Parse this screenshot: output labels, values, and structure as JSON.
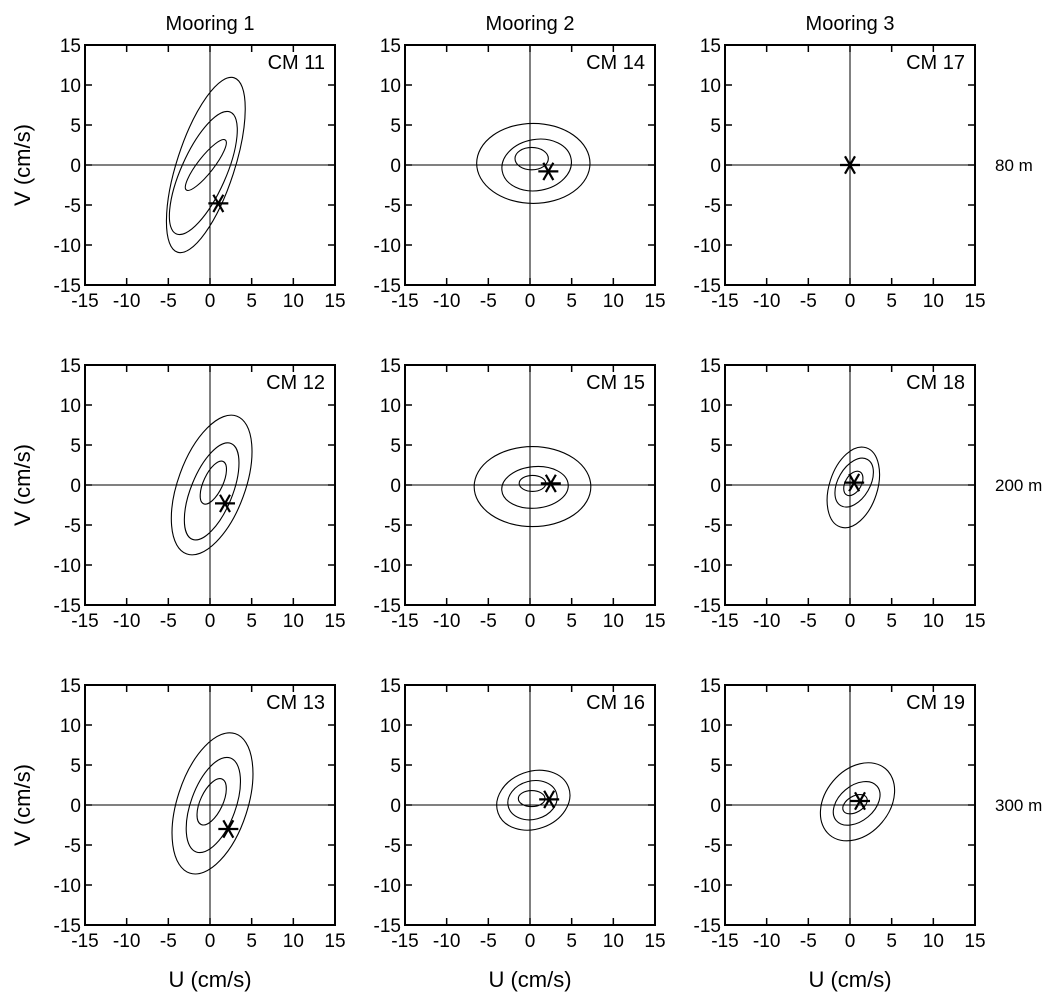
{
  "figure": {
    "column_titles": [
      "Mooring 1",
      "Mooring 2",
      "Mooring 3"
    ],
    "row_labels": [
      "80 m",
      "200 m",
      "300 m"
    ],
    "xlabel": "U (cm/s)",
    "ylabel": "V (cm/s)",
    "ticks": [
      -15,
      -10,
      -5,
      0,
      5,
      10,
      15
    ]
  },
  "chart_data": [
    {
      "type": "scatter",
      "id": "CM 11",
      "column": "Mooring 1",
      "depth": "80 m",
      "xlim": [
        -15,
        15
      ],
      "ylim": [
        -15,
        15
      ],
      "mean": [
        1,
        -4.8
      ],
      "ellipses": [
        {
          "u": -0.5,
          "v": 0,
          "a": 11,
          "b": 3.6,
          "angle": 72
        },
        {
          "u": -0.8,
          "v": -1,
          "a": 8,
          "b": 2.8,
          "angle": 66
        },
        {
          "u": -0.5,
          "v": 0,
          "a": 3.8,
          "b": 1.0,
          "angle": 52
        }
      ]
    },
    {
      "type": "scatter",
      "id": "CM 14",
      "column": "Mooring 2",
      "depth": "80 m",
      "xlim": [
        -15,
        15
      ],
      "ylim": [
        -15,
        15
      ],
      "mean": [
        2.2,
        -0.8
      ],
      "ellipses": [
        {
          "u": 0.4,
          "v": 0.2,
          "a": 6.8,
          "b": 5.0,
          "angle": 0
        },
        {
          "u": 0.8,
          "v": 0,
          "a": 4.2,
          "b": 3.2,
          "angle": 10
        },
        {
          "u": 0.2,
          "v": 0.8,
          "a": 2.0,
          "b": 1.4,
          "angle": 0
        }
      ]
    },
    {
      "type": "scatter",
      "id": "CM 17",
      "column": "Mooring 3",
      "depth": "80 m",
      "xlim": [
        -15,
        15
      ],
      "ylim": [
        -15,
        15
      ],
      "mean": [
        0,
        0
      ],
      "ellipses": []
    },
    {
      "type": "scatter",
      "id": "CM 12",
      "column": "Mooring 1",
      "depth": "200 m",
      "xlim": [
        -15,
        15
      ],
      "ylim": [
        -15,
        15
      ],
      "mean": [
        1.8,
        -2.3
      ],
      "ellipses": [
        {
          "u": 0.2,
          "v": 0,
          "a": 8.8,
          "b": 4.2,
          "angle": 70
        },
        {
          "u": 0.2,
          "v": -0.8,
          "a": 6.2,
          "b": 2.6,
          "angle": 68
        },
        {
          "u": 0.4,
          "v": 0.3,
          "a": 2.8,
          "b": 1.2,
          "angle": 65
        }
      ]
    },
    {
      "type": "scatter",
      "id": "CM 15",
      "column": "Mooring 2",
      "depth": "200 m",
      "xlim": [
        -15,
        15
      ],
      "ylim": [
        -15,
        15
      ],
      "mean": [
        2.5,
        0.2
      ],
      "ellipses": [
        {
          "u": 0.3,
          "v": -0.2,
          "a": 7.0,
          "b": 5.0,
          "angle": 0
        },
        {
          "u": 0.6,
          "v": -0.3,
          "a": 4.0,
          "b": 2.6,
          "angle": 5
        },
        {
          "u": 0.3,
          "v": 0.2,
          "a": 1.6,
          "b": 1.0,
          "angle": 0
        }
      ]
    },
    {
      "type": "scatter",
      "id": "CM 18",
      "column": "Mooring 3",
      "depth": "200 m",
      "xlim": [
        -15,
        15
      ],
      "ylim": [
        -15,
        15
      ],
      "mean": [
        0.5,
        0.3
      ],
      "ellipses": [
        {
          "u": 0.4,
          "v": -0.3,
          "a": 5.0,
          "b": 3.0,
          "angle": 72
        },
        {
          "u": 0.5,
          "v": 0.3,
          "a": 3.2,
          "b": 2.0,
          "angle": 60
        },
        {
          "u": 0.4,
          "v": 0.2,
          "a": 1.6,
          "b": 1.0,
          "angle": 60
        }
      ]
    },
    {
      "type": "scatter",
      "id": "CM 13",
      "column": "Mooring 1",
      "depth": "300 m",
      "xlim": [
        -15,
        15
      ],
      "ylim": [
        -15,
        15
      ],
      "mean": [
        2.2,
        -3.0
      ],
      "ellipses": [
        {
          "u": 0.3,
          "v": 0.2,
          "a": 8.8,
          "b": 4.4,
          "angle": 72
        },
        {
          "u": 0.4,
          "v": 0,
          "a": 6.0,
          "b": 2.8,
          "angle": 70
        },
        {
          "u": 0.2,
          "v": 0.4,
          "a": 3.0,
          "b": 1.4,
          "angle": 65
        }
      ]
    },
    {
      "type": "scatter",
      "id": "CM 16",
      "column": "Mooring 2",
      "depth": "300 m",
      "xlim": [
        -15,
        15
      ],
      "ylim": [
        -15,
        15
      ],
      "mean": [
        2.3,
        0.7
      ],
      "ellipses": [
        {
          "u": 0.4,
          "v": 0.6,
          "a": 4.5,
          "b": 3.6,
          "angle": 20
        },
        {
          "u": 0.3,
          "v": 0.6,
          "a": 3.0,
          "b": 2.4,
          "angle": 15
        },
        {
          "u": 0.2,
          "v": 0.8,
          "a": 1.6,
          "b": 1.0,
          "angle": 0
        }
      ]
    },
    {
      "type": "scatter",
      "id": "CM 19",
      "column": "Mooring 3",
      "depth": "300 m",
      "xlim": [
        -15,
        15
      ],
      "ylim": [
        -15,
        15
      ],
      "mean": [
        1.2,
        0.5
      ],
      "ellipses": [
        {
          "u": 0.9,
          "v": 0.4,
          "a": 5.2,
          "b": 4.0,
          "angle": 50
        },
        {
          "u": 0.8,
          "v": 0.2,
          "a": 3.2,
          "b": 2.2,
          "angle": 40
        },
        {
          "u": 0.6,
          "v": 0.1,
          "a": 1.6,
          "b": 1.0,
          "angle": 30
        }
      ]
    }
  ]
}
